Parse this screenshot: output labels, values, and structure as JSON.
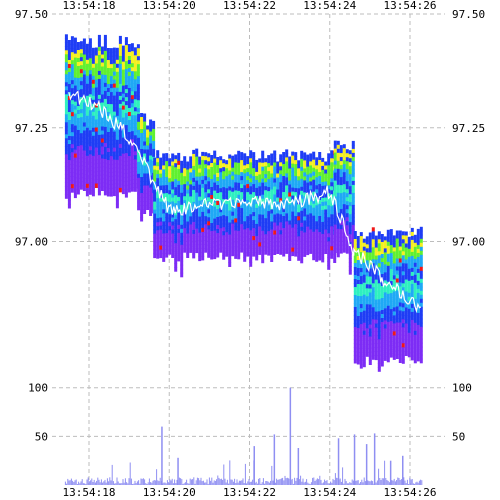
{
  "chart_data": [
    {
      "type": "heatmap",
      "title": "",
      "xlabel": "",
      "ylabel": "",
      "x_ticks": [
        "13:54:18",
        "13:54:20",
        "13:54:22",
        "13:54:24",
        "13:54:26"
      ],
      "y_ticks": [
        "97.50",
        "97.25",
        "97.00"
      ],
      "ylim": [
        96.7,
        97.5
      ],
      "grid": true,
      "colors": {
        "low": "#7d2cf5",
        "mid_low": "#1f3df5",
        "mid": "#1fa9f5",
        "mid_high": "#2ef0c0",
        "high": "#60f030",
        "top": "#f5f020",
        "peak": "#f01818",
        "price_line": "#ffffff"
      },
      "series": [
        {
          "name": "",
          "segments": [
            {
              "t_start": "13:54:17.4",
              "t_end": "13:54:19.2",
              "price_top": 97.44,
              "price_bottom": 97.11
            },
            {
              "t_start": "13:54:19.2",
              "t_end": "13:54:19.6",
              "price_top": 97.27,
              "price_bottom": 97.07
            },
            {
              "t_start": "13:54:19.6",
              "t_end": "13:54:24.1",
              "price_top": 97.19,
              "price_bottom": 96.97
            },
            {
              "t_start": "13:54:24.1",
              "t_end": "13:54:24.6",
              "price_top": 97.21,
              "price_bottom": 96.98
            },
            {
              "t_start": "13:54:24.6",
              "t_end": "13:54:26.3",
              "price_top": 97.02,
              "price_bottom": 96.74
            }
          ],
          "price_line": [
            {
              "t": "13:54:17.5",
              "v": 97.33
            },
            {
              "t": "13:54:18.3",
              "v": 97.29
            },
            {
              "t": "13:54:19.0",
              "v": 97.23
            },
            {
              "t": "13:54:19.5",
              "v": 97.15
            },
            {
              "t": "13:54:20.0",
              "v": 97.07
            },
            {
              "t": "13:54:21.0",
              "v": 97.08
            },
            {
              "t": "13:54:22.0",
              "v": 97.09
            },
            {
              "t": "13:54:23.0",
              "v": 97.08
            },
            {
              "t": "13:54:24.0",
              "v": 97.11
            },
            {
              "t": "13:54:24.6",
              "v": 96.98
            },
            {
              "t": "13:54:25.3",
              "v": 96.92
            },
            {
              "t": "13:54:26.3",
              "v": 96.85
            }
          ]
        }
      ]
    },
    {
      "type": "bar",
      "title": "",
      "x_ticks": [
        "13:54:18",
        "13:54:20",
        "13:54:22",
        "13:54:24",
        "13:54:26"
      ],
      "y_ticks": [
        "100",
        "50"
      ],
      "ylim": [
        0,
        110
      ],
      "grid": true,
      "bar_color": "#8f8ff2",
      "highlighted_spikes": [
        {
          "t": "13:54:19.8",
          "v": 60
        },
        {
          "t": "13:54:20.2",
          "v": 28
        },
        {
          "t": "13:54:22.1",
          "v": 40
        },
        {
          "t": "13:54:22.6",
          "v": 52
        },
        {
          "t": "13:54:23.0",
          "v": 100
        },
        {
          "t": "13:54:23.2",
          "v": 38
        },
        {
          "t": "13:54:24.2",
          "v": 48
        },
        {
          "t": "13:54:24.6",
          "v": 52
        },
        {
          "t": "13:54:24.9",
          "v": 42
        },
        {
          "t": "13:54:25.1",
          "v": 53
        },
        {
          "t": "13:54:25.5",
          "v": 25
        },
        {
          "t": "13:54:25.8",
          "v": 30
        }
      ]
    }
  ]
}
